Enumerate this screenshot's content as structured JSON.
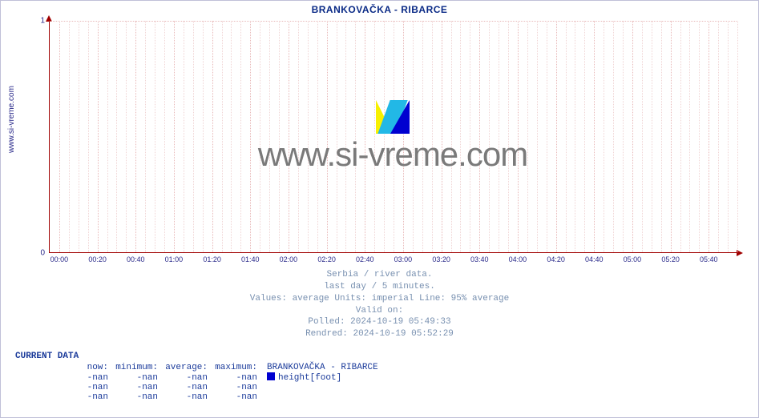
{
  "title": "BRANKOVAČKA -  RIBARCE",
  "side_label": "www.si-vreme.com",
  "watermark_text": "www.si-vreme.com",
  "chart": {
    "type": "line",
    "ylim": [
      0,
      1
    ],
    "yticks": [
      0,
      1
    ],
    "xticks": [
      "00:00",
      "00:20",
      "00:40",
      "01:00",
      "01:20",
      "01:40",
      "02:00",
      "02:20",
      "02:40",
      "03:00",
      "03:20",
      "03:40",
      "04:00",
      "04:20",
      "04:40",
      "05:00",
      "05:20",
      "05:40"
    ],
    "minor_per_major": 4,
    "axis_color": "#a00000",
    "grid_major_color": "#e8b8b8",
    "grid_minor_color": "#f0d4d4",
    "tick_label_color": "#2a2a8a",
    "background_color": "#ffffff"
  },
  "meta_lines": [
    "Serbia / river data.",
    "last day / 5 minutes.",
    "Values: average  Units: imperial  Line: 95% average",
    "Valid on:",
    "Polled: 2024-10-19 05:49:33",
    "Rendred: 2024-10-19 05:52:29"
  ],
  "current_data": {
    "title": "CURRENT DATA",
    "headers": [
      "now:",
      "minimum:",
      "average:",
      "maximum:"
    ],
    "series": {
      "label": "BRANKOVAČKA -  RIBARCE",
      "color": "#0000d0",
      "measure": "height[foot]"
    },
    "rows": [
      [
        "-nan",
        "-nan",
        "-nan",
        "-nan"
      ],
      [
        "-nan",
        "-nan",
        "-nan",
        "-nan"
      ],
      [
        "-nan",
        "-nan",
        "-nan",
        "-nan"
      ]
    ]
  }
}
